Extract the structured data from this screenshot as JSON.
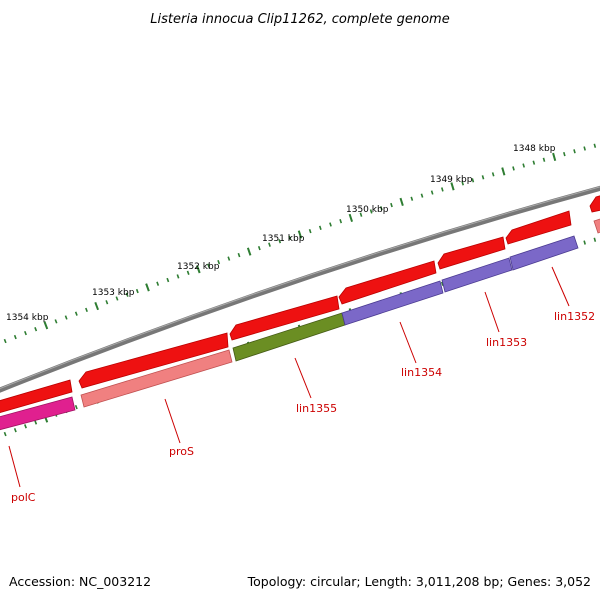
{
  "title": "Listeria innocua Clip11262, complete genome",
  "accession": "Accession: NC_003212",
  "topology": "Topology: circular; Length: 3,011,208 bp; Genes: 3,052",
  "colors": {
    "backbone": "#777777",
    "tick": "#2e7d32",
    "label": "#cc0000",
    "gene_red": "#ee1111",
    "gene_pink": "#f08080",
    "gene_magenta": "#e0208f",
    "gene_olive": "#6b8e23",
    "gene_purple": "#7b68c8"
  },
  "ticks": [
    {
      "label": "1348 kbp",
      "kbp": 1348
    },
    {
      "label": "1349 kbp",
      "kbp": 1349
    },
    {
      "label": "1350 kbp",
      "kbp": 1350
    },
    {
      "label": "1351 kbp",
      "kbp": 1351
    },
    {
      "label": "1352 kbp",
      "kbp": 1352
    },
    {
      "label": "1353 kbp",
      "kbp": 1353
    },
    {
      "label": "1354 kbp",
      "kbp": 1354
    }
  ],
  "gene_labels": [
    "lin1352",
    "lin1353",
    "lin1354",
    "lin1355",
    "proS",
    "polC"
  ]
}
